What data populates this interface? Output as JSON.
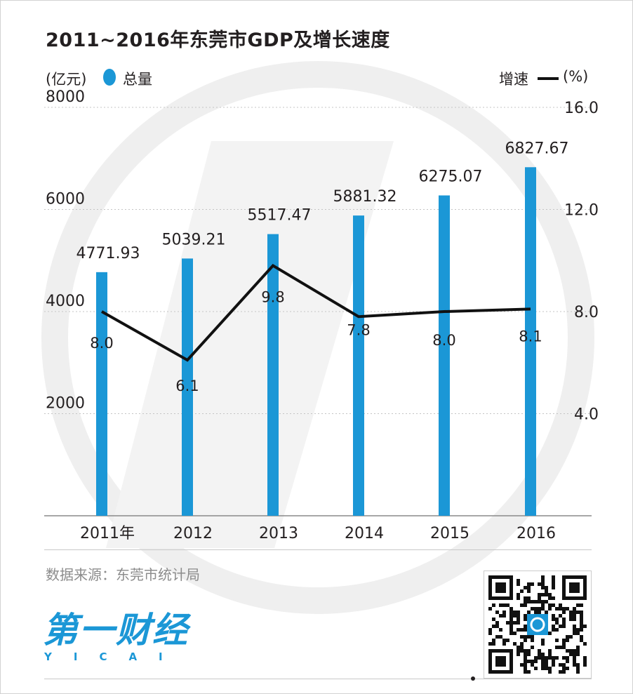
{
  "title": "2011~2016年东莞市GDP及增长速度",
  "legend": {
    "left_unit": "(亿元)",
    "total_label": "总量",
    "rate_label": "增速",
    "right_unit": "(%)"
  },
  "colors": {
    "bar": "#1b97d6",
    "line": "#111111",
    "watermark": "#efefef"
  },
  "chart_data": {
    "type": "bar",
    "categories": [
      "2011年",
      "2012",
      "2013",
      "2014",
      "2015",
      "2016"
    ],
    "series": [
      {
        "name": "总量",
        "type": "bar",
        "axis": "left",
        "values": [
          4771.93,
          5039.21,
          5517.47,
          5881.32,
          6275.07,
          6827.67
        ],
        "labels": [
          "4771.93",
          "5039.21",
          "5517.47",
          "5881.32",
          "6275.07",
          "6827.67"
        ]
      },
      {
        "name": "增速",
        "type": "line",
        "axis": "right",
        "values": [
          8.0,
          6.1,
          9.8,
          7.8,
          8.0,
          8.1
        ],
        "labels": [
          "8.0",
          "6.1",
          "9.8",
          "7.8",
          "8.0",
          "8.1"
        ]
      }
    ],
    "left_axis": {
      "ylim": [
        0,
        8000
      ],
      "ticks": [
        "2000",
        "4000",
        "6000",
        "8000"
      ]
    },
    "right_axis": {
      "ylim": [
        0,
        16
      ],
      "ticks": [
        "4.0",
        "8.0",
        "12.0",
        "16.0"
      ]
    },
    "grid": true
  },
  "source": "数据来源：东莞市统计局",
  "logo": {
    "text": "第一财经",
    "sub": "YICAI"
  }
}
